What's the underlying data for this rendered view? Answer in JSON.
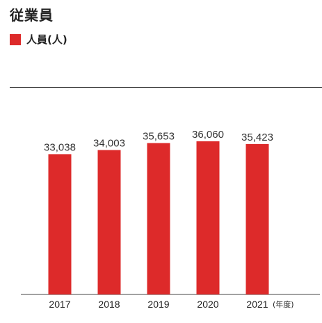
{
  "page": {
    "title": "従業員"
  },
  "chart_data": {
    "type": "bar",
    "title": "従業員",
    "categories": [
      "2017",
      "2018",
      "2019",
      "2020",
      "2021"
    ],
    "series": [
      {
        "name": "人員(人)",
        "values": [
          33038,
          34003,
          35653,
          36060,
          35423
        ],
        "color": "#dd2a2a"
      }
    ],
    "value_labels": [
      "33,038",
      "34,003",
      "35,653",
      "36,060",
      "35,423"
    ],
    "x_unit": "(年度)",
    "ylim": [
      0,
      36060
    ],
    "grid": false,
    "legend_position": "top-left"
  }
}
